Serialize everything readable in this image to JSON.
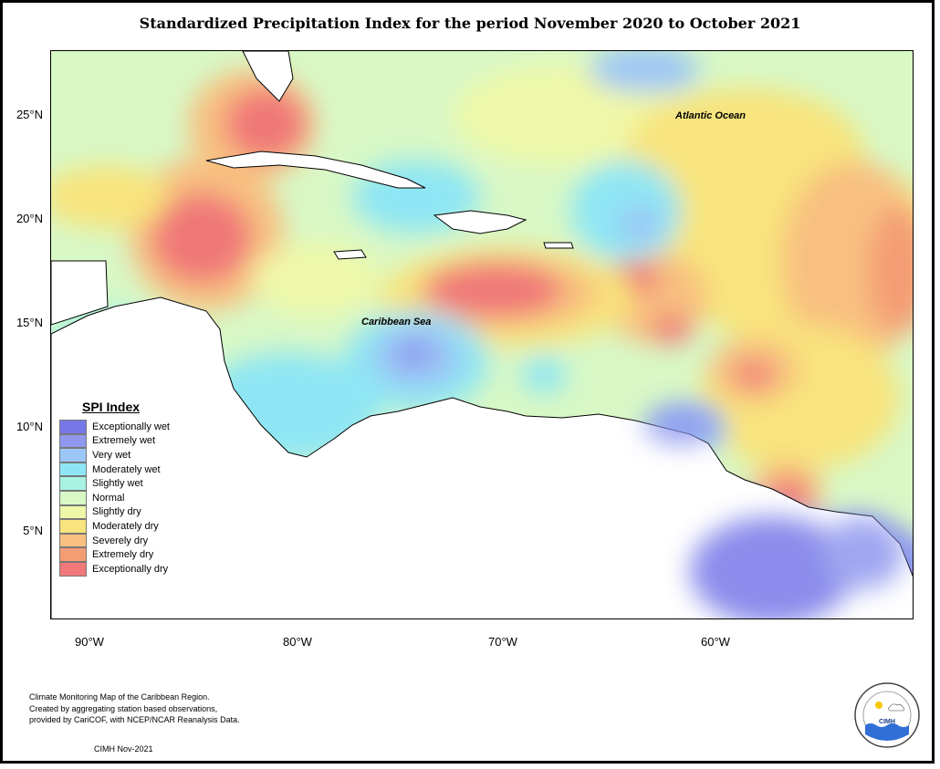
{
  "title": "Standardized Precipitation Index for the period November 2020 to October 2021",
  "axes": {
    "y_ticks": [
      "25°N",
      "20°N",
      "15°N",
      "10°N",
      "5°N"
    ],
    "x_ticks": [
      "90°W",
      "80°W",
      "70°W",
      "60°W"
    ]
  },
  "legend": {
    "title": "SPI Index",
    "items": [
      {
        "label": "Exceptionally wet",
        "color": "#7778e8"
      },
      {
        "label": "Extremely wet",
        "color": "#8f98ee"
      },
      {
        "label": "Very wet",
        "color": "#9cc6f6"
      },
      {
        "label": "Moderately wet",
        "color": "#8ee6f4"
      },
      {
        "label": "Slightly wet",
        "color": "#a8f2e2"
      },
      {
        "label": "Normal",
        "color": "#d8f8c6"
      },
      {
        "label": "Slightly dry",
        "color": "#eff8a8"
      },
      {
        "label": "Moderately dry",
        "color": "#f8e47c"
      },
      {
        "label": "Severely dry",
        "color": "#f8c080"
      },
      {
        "label": "Extremely dry",
        "color": "#f49c74"
      },
      {
        "label": "Exceptionally dry",
        "color": "#f07878"
      }
    ]
  },
  "map_labels": {
    "atlantic": "Atlantic Ocean",
    "caribbean": "Caribbean Sea"
  },
  "credits": [
    "Climate Monitoring Map of the Caribbean Region.",
    "Created by aggregating station based observations,",
    "provided by CariCOF, with NCEP/NCAR Reanalysis Data."
  ],
  "date": "CIMH Nov-2021",
  "logo": {
    "text": "CIMH",
    "ring_text": "Caribbean Institute for Meteorology and Hydrology"
  }
}
